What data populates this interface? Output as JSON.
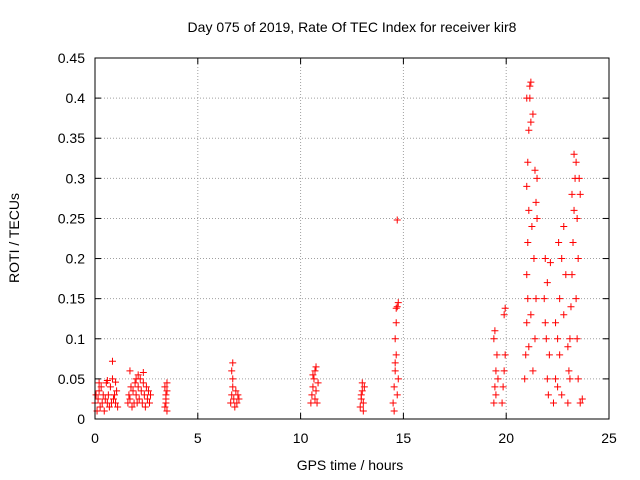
{
  "chart_data": {
    "type": "scatter",
    "title": "Day 075 of 2019, Rate Of TEC Index for receiver kir8",
    "xlabel": "GPS time / hours",
    "ylabel": "ROTI / TECUs",
    "xlim": [
      0,
      25
    ],
    "ylim": [
      0,
      0.45
    ],
    "x_ticks": [
      0,
      5,
      10,
      15,
      20,
      25
    ],
    "x_tick_labels": [
      "0",
      "5",
      "10",
      "15",
      "20",
      "25"
    ],
    "y_ticks": [
      0,
      0.05,
      0.1,
      0.15,
      0.2,
      0.25,
      0.3,
      0.35,
      0.4,
      0.45
    ],
    "y_tick_labels": [
      "0",
      "0.05",
      "0.1",
      "0.15",
      "0.2",
      "0.25",
      "0.3",
      "0.35",
      "0.4",
      "0.45"
    ],
    "grid": true,
    "marker": "+",
    "marker_color": "#ff0000",
    "series": [
      {
        "name": "ROTI",
        "points": [
          [
            0.0,
            0.02
          ],
          [
            0.05,
            0.03
          ],
          [
            0.1,
            0.01
          ],
          [
            0.15,
            0.025
          ],
          [
            0.2,
            0.035
          ],
          [
            0.25,
            0.015
          ],
          [
            0.3,
            0.04
          ],
          [
            0.35,
            0.02
          ],
          [
            0.4,
            0.03
          ],
          [
            0.45,
            0.01
          ],
          [
            0.5,
            0.025
          ],
          [
            0.55,
            0.045
          ],
          [
            0.6,
            0.02
          ],
          [
            0.65,
            0.03
          ],
          [
            0.7,
            0.015
          ],
          [
            0.75,
            0.04
          ],
          [
            0.8,
            0.02
          ],
          [
            0.85,
            0.05
          ],
          [
            0.9,
            0.025
          ],
          [
            0.95,
            0.03
          ],
          [
            1.0,
            0.02
          ],
          [
            1.05,
            0.035
          ],
          [
            1.1,
            0.015
          ],
          [
            0.85,
            0.072
          ],
          [
            0.2,
            0.045
          ],
          [
            0.6,
            0.048
          ],
          [
            1.0,
            0.046
          ],
          [
            1.6,
            0.02
          ],
          [
            1.65,
            0.03
          ],
          [
            1.7,
            0.025
          ],
          [
            1.75,
            0.04
          ],
          [
            1.8,
            0.015
          ],
          [
            1.85,
            0.035
          ],
          [
            1.9,
            0.02
          ],
          [
            1.95,
            0.045
          ],
          [
            2.0,
            0.03
          ],
          [
            2.05,
            0.02
          ],
          [
            2.1,
            0.04
          ],
          [
            2.15,
            0.025
          ],
          [
            2.2,
            0.05
          ],
          [
            2.25,
            0.035
          ],
          [
            2.3,
            0.02
          ],
          [
            2.35,
            0.045
          ],
          [
            2.4,
            0.03
          ],
          [
            2.45,
            0.015
          ],
          [
            2.5,
            0.04
          ],
          [
            2.55,
            0.025
          ],
          [
            2.6,
            0.035
          ],
          [
            2.65,
            0.02
          ],
          [
            2.7,
            0.03
          ],
          [
            1.7,
            0.06
          ],
          [
            2.1,
            0.055
          ],
          [
            2.35,
            0.058
          ],
          [
            2.0,
            0.05
          ],
          [
            3.4,
            0.015
          ],
          [
            3.45,
            0.025
          ],
          [
            3.5,
            0.035
          ],
          [
            3.45,
            0.02
          ],
          [
            3.4,
            0.04
          ],
          [
            3.5,
            0.01
          ],
          [
            3.45,
            0.03
          ],
          [
            3.5,
            0.045
          ],
          [
            6.6,
            0.02
          ],
          [
            6.65,
            0.03
          ],
          [
            6.7,
            0.04
          ],
          [
            6.75,
            0.025
          ],
          [
            6.8,
            0.015
          ],
          [
            6.85,
            0.035
          ],
          [
            6.9,
            0.02
          ],
          [
            6.95,
            0.03
          ],
          [
            7.0,
            0.025
          ],
          [
            6.7,
            0.05
          ],
          [
            6.65,
            0.06
          ],
          [
            6.7,
            0.07
          ],
          [
            10.5,
            0.02
          ],
          [
            10.55,
            0.03
          ],
          [
            10.6,
            0.04
          ],
          [
            10.65,
            0.05
          ],
          [
            10.7,
            0.025
          ],
          [
            10.75,
            0.035
          ],
          [
            10.8,
            0.02
          ],
          [
            10.85,
            0.045
          ],
          [
            10.6,
            0.055
          ],
          [
            10.7,
            0.06
          ],
          [
            10.75,
            0.065
          ],
          [
            12.9,
            0.015
          ],
          [
            12.95,
            0.025
          ],
          [
            13.0,
            0.035
          ],
          [
            13.05,
            0.02
          ],
          [
            13.1,
            0.04
          ],
          [
            13.0,
            0.045
          ],
          [
            12.95,
            0.03
          ],
          [
            13.05,
            0.01
          ],
          [
            14.5,
            0.02
          ],
          [
            14.55,
            0.04
          ],
          [
            14.6,
            0.06
          ],
          [
            14.65,
            0.08
          ],
          [
            14.7,
            0.03
          ],
          [
            14.75,
            0.05
          ],
          [
            14.6,
            0.1
          ],
          [
            14.65,
            0.12
          ],
          [
            14.7,
            0.14
          ],
          [
            14.75,
            0.145
          ],
          [
            14.65,
            0.138
          ],
          [
            14.7,
            0.248
          ],
          [
            14.55,
            0.01
          ],
          [
            14.6,
            0.07
          ],
          [
            19.4,
            0.02
          ],
          [
            19.45,
            0.04
          ],
          [
            19.5,
            0.06
          ],
          [
            19.55,
            0.08
          ],
          [
            19.4,
            0.1
          ],
          [
            19.45,
            0.11
          ],
          [
            19.5,
            0.03
          ],
          [
            19.6,
            0.05
          ],
          [
            19.8,
            0.02
          ],
          [
            19.85,
            0.04
          ],
          [
            19.9,
            0.06
          ],
          [
            19.95,
            0.08
          ],
          [
            19.9,
            0.13
          ],
          [
            19.95,
            0.138
          ],
          [
            20.9,
            0.05
          ],
          [
            20.95,
            0.08
          ],
          [
            21.0,
            0.12
          ],
          [
            21.05,
            0.15
          ],
          [
            21.0,
            0.18
          ],
          [
            21.05,
            0.22
          ],
          [
            21.1,
            0.26
          ],
          [
            21.0,
            0.29
          ],
          [
            21.05,
            0.32
          ],
          [
            21.1,
            0.36
          ],
          [
            21.15,
            0.4
          ],
          [
            21.2,
            0.42
          ],
          [
            21.15,
            0.415
          ],
          [
            21.0,
            0.4
          ],
          [
            21.2,
            0.37
          ],
          [
            21.3,
            0.38
          ],
          [
            21.4,
            0.31
          ],
          [
            21.5,
            0.25
          ],
          [
            21.35,
            0.2
          ],
          [
            21.45,
            0.15
          ],
          [
            21.4,
            0.1
          ],
          [
            21.3,
            0.06
          ],
          [
            21.5,
            0.3
          ],
          [
            21.45,
            0.27
          ],
          [
            21.25,
            0.24
          ],
          [
            21.2,
            0.13
          ],
          [
            21.1,
            0.09
          ],
          [
            21.9,
            0.2
          ],
          [
            21.85,
            0.15
          ],
          [
            21.95,
            0.1
          ],
          [
            22.0,
            0.05
          ],
          [
            22.05,
            0.03
          ],
          [
            22.1,
            0.08
          ],
          [
            21.9,
            0.12
          ],
          [
            22.0,
            0.17
          ],
          [
            22.15,
            0.195
          ],
          [
            22.3,
            0.02
          ],
          [
            22.4,
            0.05
          ],
          [
            22.5,
            0.1
          ],
          [
            22.6,
            0.15
          ],
          [
            22.7,
            0.2
          ],
          [
            22.8,
            0.24
          ],
          [
            22.4,
            0.12
          ],
          [
            22.5,
            0.04
          ],
          [
            22.6,
            0.08
          ],
          [
            22.7,
            0.03
          ],
          [
            22.8,
            0.13
          ],
          [
            22.9,
            0.18
          ],
          [
            22.55,
            0.22
          ],
          [
            23.0,
            0.02
          ],
          [
            23.05,
            0.06
          ],
          [
            23.1,
            0.1
          ],
          [
            23.15,
            0.14
          ],
          [
            23.2,
            0.18
          ],
          [
            23.25,
            0.22
          ],
          [
            23.3,
            0.26
          ],
          [
            23.35,
            0.3
          ],
          [
            23.4,
            0.32
          ],
          [
            23.3,
            0.33
          ],
          [
            23.2,
            0.28
          ],
          [
            23.1,
            0.05
          ],
          [
            23.0,
            0.09
          ],
          [
            23.45,
            0.25
          ],
          [
            23.5,
            0.2
          ],
          [
            23.4,
            0.15
          ],
          [
            23.45,
            0.1
          ],
          [
            23.5,
            0.05
          ],
          [
            23.6,
            0.02
          ],
          [
            23.7,
            0.025
          ],
          [
            23.55,
            0.3
          ],
          [
            23.6,
            0.28
          ]
        ]
      }
    ]
  }
}
